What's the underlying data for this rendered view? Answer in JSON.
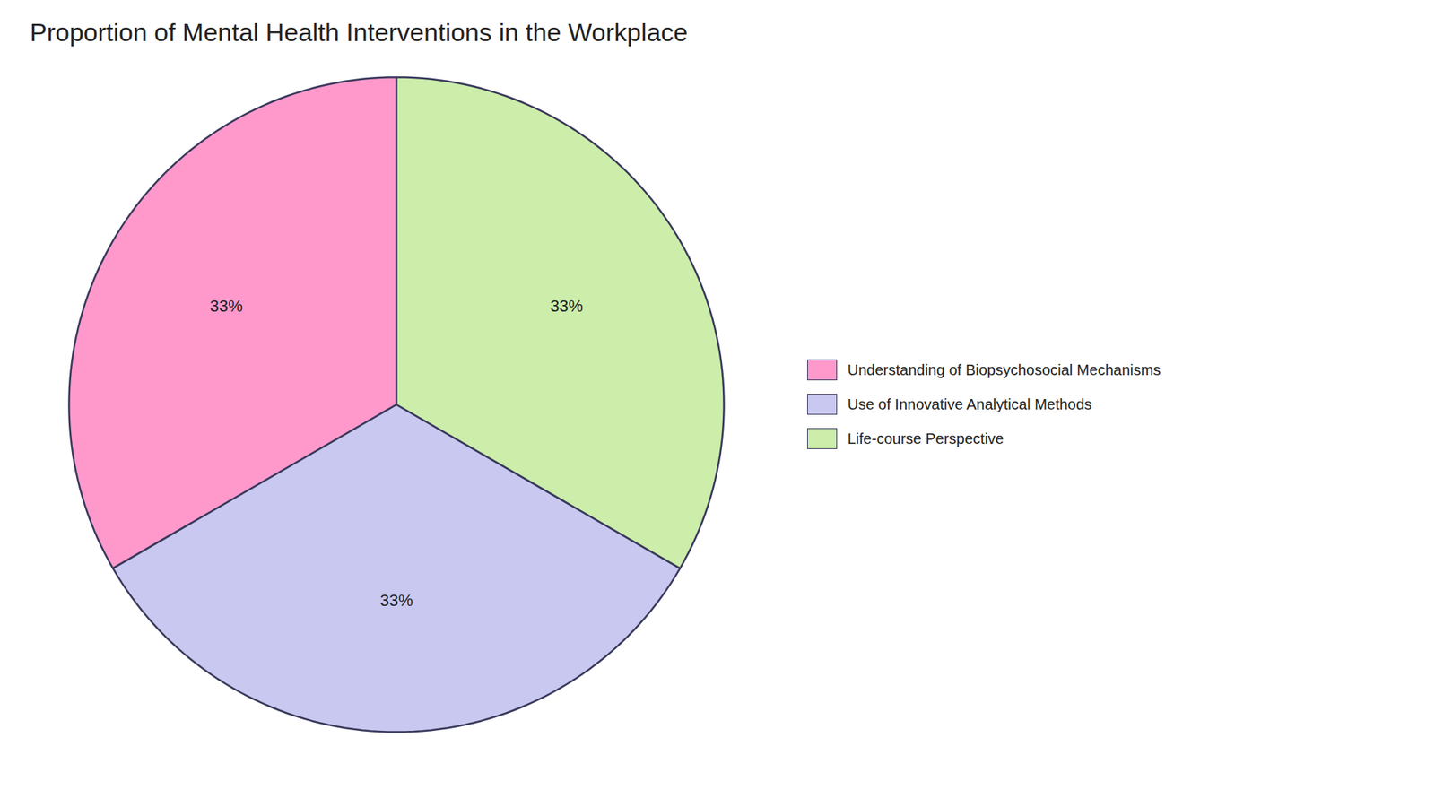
{
  "chart_data": {
    "type": "pie",
    "title": "Proportion of Mental Health Interventions in the Workplace",
    "categories": [
      "Understanding of Biopsychosocial Mechanisms",
      "Use of Innovative Analytical Methods",
      "Life-course Perspective"
    ],
    "values": [
      33,
      33,
      33
    ],
    "value_labels": [
      "33%",
      "33%",
      "33%"
    ],
    "colors": [
      "#FF99CC",
      "#C8C8F0",
      "#CCEEAA"
    ],
    "data_labels": true,
    "legend": "right"
  }
}
